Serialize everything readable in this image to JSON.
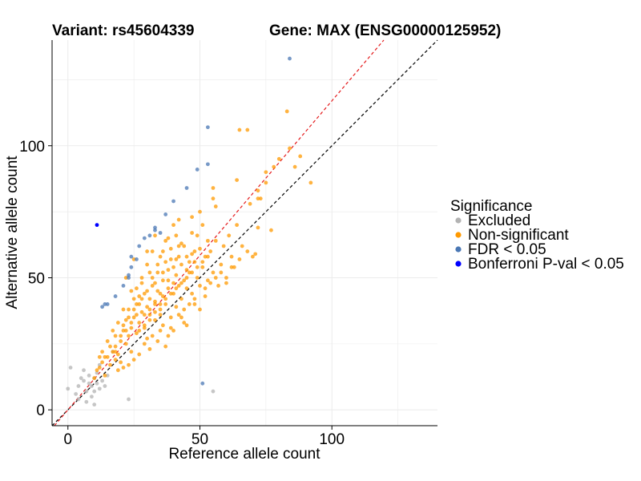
{
  "chart_data": {
    "type": "scatter",
    "title_left": "Variant: rs45604339",
    "title_right": "Gene: MAX (ENSG00000125952)",
    "xlabel": "Reference allele count",
    "ylabel": "Alternative allele count",
    "xlim": [
      -6,
      140
    ],
    "ylim": [
      -6,
      140
    ],
    "xticks": [
      0,
      50,
      100
    ],
    "yticks": [
      0,
      50,
      100
    ],
    "grid": true,
    "reference_lines": [
      {
        "name": "y = x",
        "slope": 1.0,
        "intercept": 0,
        "color": "#000000",
        "style": "dashed"
      },
      {
        "name": "fitted ratio",
        "slope": 1.17,
        "intercept": 0,
        "color": "#e41a1c",
        "style": "dashed"
      }
    ],
    "legend": {
      "title": "Significance",
      "position": "right",
      "items": [
        {
          "label": "Excluded",
          "color": "#b3b3b3"
        },
        {
          "label": "Non-significant",
          "color": "#ff9900"
        },
        {
          "label": "FDR < 0.05",
          "color": "#4a77b4"
        },
        {
          "label": "Bonferroni P-val < 0.05",
          "color": "#0000ff"
        }
      ]
    },
    "series": [
      {
        "name": "Excluded",
        "color": "#b3b3b3",
        "points": [
          [
            0,
            8
          ],
          [
            1,
            16
          ],
          [
            3,
            6
          ],
          [
            4,
            9
          ],
          [
            4,
            4
          ],
          [
            5,
            12
          ],
          [
            6,
            11
          ],
          [
            6,
            15
          ],
          [
            7,
            7
          ],
          [
            7,
            3
          ],
          [
            8,
            10
          ],
          [
            8,
            13
          ],
          [
            9,
            5
          ],
          [
            9,
            9
          ],
          [
            10,
            12
          ],
          [
            10,
            7
          ],
          [
            10,
            2
          ],
          [
            11,
            10
          ],
          [
            11,
            14
          ],
          [
            12,
            8
          ],
          [
            12,
            17
          ],
          [
            13,
            11
          ],
          [
            14,
            9
          ],
          [
            15,
            13
          ],
          [
            17,
            22
          ],
          [
            23,
            4
          ],
          [
            55,
            7
          ]
        ]
      },
      {
        "name": "Non-significant",
        "color": "#ff9900",
        "points": [
          [
            10,
            12
          ],
          [
            11,
            15
          ],
          [
            12,
            16
          ],
          [
            13,
            18
          ],
          [
            14,
            13
          ],
          [
            15,
            20
          ],
          [
            16,
            17
          ],
          [
            17,
            22
          ],
          [
            18,
            19
          ],
          [
            18,
            24
          ],
          [
            19,
            21
          ],
          [
            20,
            26
          ],
          [
            20,
            18
          ],
          [
            21,
            30
          ],
          [
            22,
            25
          ],
          [
            22,
            34
          ],
          [
            23,
            28
          ],
          [
            23,
            38
          ],
          [
            24,
            31
          ],
          [
            24,
            22
          ],
          [
            25,
            35
          ],
          [
            25,
            42
          ],
          [
            26,
            29
          ],
          [
            26,
            46
          ],
          [
            27,
            33
          ],
          [
            27,
            40
          ],
          [
            28,
            37
          ],
          [
            28,
            50
          ],
          [
            29,
            31
          ],
          [
            29,
            44
          ],
          [
            30,
            39
          ],
          [
            30,
            55
          ],
          [
            30,
            27
          ],
          [
            31,
            42
          ],
          [
            31,
            36
          ],
          [
            32,
            47
          ],
          [
            32,
            60
          ],
          [
            33,
            34
          ],
          [
            33,
            41
          ],
          [
            34,
            45
          ],
          [
            34,
            52
          ],
          [
            35,
            38
          ],
          [
            35,
            30
          ],
          [
            35,
            58
          ],
          [
            36,
            43
          ],
          [
            36,
            49
          ],
          [
            37,
            40
          ],
          [
            37,
            64
          ],
          [
            38,
            46
          ],
          [
            38,
            53
          ],
          [
            39,
            35
          ],
          [
            39,
            57
          ],
          [
            40,
            44
          ],
          [
            40,
            48
          ],
          [
            41,
            51
          ],
          [
            41,
            39
          ],
          [
            42,
            62
          ],
          [
            42,
            47
          ],
          [
            43,
            55
          ],
          [
            43,
            42
          ],
          [
            44,
            49
          ],
          [
            44,
            33
          ],
          [
            45,
            58
          ],
          [
            45,
            46
          ],
          [
            46,
            52
          ],
          [
            47,
            44
          ],
          [
            47,
            67
          ],
          [
            48,
            56
          ],
          [
            48,
            40
          ],
          [
            49,
            50
          ],
          [
            50,
            47
          ],
          [
            50,
            61
          ],
          [
            51,
            54
          ],
          [
            52,
            43
          ],
          [
            52,
            58
          ],
          [
            53,
            49
          ],
          [
            54,
            60
          ],
          [
            55,
            52
          ],
          [
            56,
            64
          ],
          [
            57,
            47
          ],
          [
            58,
            55
          ],
          [
            59,
            62
          ],
          [
            60,
            50
          ],
          [
            61,
            66
          ],
          [
            62,
            58
          ],
          [
            63,
            54
          ],
          [
            64,
            70
          ],
          [
            65,
            57
          ],
          [
            66,
            62
          ],
          [
            68,
            60
          ],
          [
            70,
            58
          ],
          [
            71,
            59
          ],
          [
            72,
            80
          ],
          [
            75,
            90
          ],
          [
            78,
            92
          ],
          [
            80,
            95
          ],
          [
            83,
            113
          ],
          [
            84,
            99
          ],
          [
            86,
            92
          ],
          [
            88,
            96
          ],
          [
            92,
            86
          ],
          [
            65,
            106
          ],
          [
            68,
            106
          ],
          [
            72,
            69
          ],
          [
            72,
            83
          ],
          [
            64,
            87
          ],
          [
            55,
            84
          ],
          [
            55,
            80
          ],
          [
            56,
            77
          ],
          [
            50,
            75
          ],
          [
            47,
            73
          ],
          [
            42,
            72
          ],
          [
            41,
            66
          ],
          [
            33,
            66
          ],
          [
            30,
            60
          ],
          [
            25,
            57
          ],
          [
            22,
            50
          ],
          [
            28,
            48
          ],
          [
            26,
            40
          ],
          [
            24,
            45
          ],
          [
            21,
            38
          ],
          [
            19,
            33
          ],
          [
            18,
            28
          ],
          [
            17,
            30
          ],
          [
            16,
            24
          ],
          [
            15,
            26
          ],
          [
            14,
            20
          ],
          [
            13,
            22
          ],
          [
            12,
            20
          ],
          [
            32,
            28
          ],
          [
            36,
            32
          ],
          [
            38,
            28
          ],
          [
            40,
            30
          ],
          [
            42,
            36
          ],
          [
            44,
            38
          ],
          [
            46,
            40
          ],
          [
            48,
            42
          ],
          [
            50,
            38
          ],
          [
            52,
            46
          ],
          [
            54,
            48
          ],
          [
            56,
            50
          ],
          [
            58,
            52
          ],
          [
            60,
            48
          ],
          [
            62,
            54
          ],
          [
            29,
            25
          ],
          [
            31,
            23
          ],
          [
            27,
            21
          ],
          [
            25,
            19
          ],
          [
            23,
            17
          ],
          [
            21,
            16
          ],
          [
            19,
            15
          ],
          [
            34,
            26
          ],
          [
            37,
            24
          ],
          [
            39,
            31
          ],
          [
            43,
            35
          ],
          [
            45,
            32
          ],
          [
            30,
            45
          ],
          [
            32,
            50
          ],
          [
            34,
            55
          ],
          [
            36,
            60
          ],
          [
            38,
            65
          ],
          [
            40,
            70
          ],
          [
            31,
            52
          ],
          [
            33,
            48
          ],
          [
            35,
            44
          ],
          [
            37,
            56
          ],
          [
            39,
            61
          ],
          [
            41,
            57
          ],
          [
            43,
            63
          ],
          [
            45,
            53
          ],
          [
            47,
            59
          ],
          [
            49,
            66
          ],
          [
            51,
            70
          ],
          [
            53,
            64
          ],
          [
            28,
            42
          ],
          [
            26,
            36
          ],
          [
            24,
            33
          ],
          [
            22,
            30
          ],
          [
            20,
            28
          ],
          [
            18,
            22
          ],
          [
            29,
            36
          ],
          [
            31,
            38
          ],
          [
            33,
            40
          ],
          [
            35,
            36
          ],
          [
            37,
            42
          ],
          [
            39,
            44
          ],
          [
            41,
            46
          ],
          [
            43,
            48
          ],
          [
            45,
            50
          ],
          [
            47,
            52
          ],
          [
            49,
            54
          ],
          [
            51,
            56
          ],
          [
            53,
            58
          ],
          [
            36,
            52
          ],
          [
            38,
            49
          ],
          [
            40,
            54
          ],
          [
            42,
            58
          ],
          [
            44,
            62
          ],
          [
            46,
            56
          ],
          [
            48,
            60
          ],
          [
            27,
            30
          ],
          [
            29,
            32
          ],
          [
            31,
            34
          ],
          [
            33,
            37
          ],
          [
            35,
            40
          ],
          [
            27,
            43
          ],
          [
            25,
            38
          ],
          [
            23,
            35
          ],
          [
            21,
            32
          ],
          [
            77,
            68
          ],
          [
            75,
            86
          ],
          [
            73,
            80
          ],
          [
            69,
            78
          ]
        ]
      },
      {
        "name": "FDR < 0.05",
        "color": "#4a77b4",
        "points": [
          [
            13,
            39
          ],
          [
            14,
            40
          ],
          [
            15,
            40
          ],
          [
            18,
            43
          ],
          [
            21,
            47
          ],
          [
            23,
            51
          ],
          [
            23,
            50
          ],
          [
            24,
            54
          ],
          [
            24,
            58
          ],
          [
            26,
            57
          ],
          [
            27,
            62
          ],
          [
            29,
            65
          ],
          [
            31,
            66
          ],
          [
            33,
            68
          ],
          [
            33,
            69
          ],
          [
            35,
            67
          ],
          [
            37,
            74
          ],
          [
            40,
            79
          ],
          [
            45,
            84
          ],
          [
            49,
            91
          ],
          [
            53,
            93
          ],
          [
            53,
            107
          ],
          [
            84,
            133
          ],
          [
            51,
            10
          ]
        ]
      },
      {
        "name": "Bonferroni P-val < 0.05",
        "color": "#0000ff",
        "points": [
          [
            11,
            70
          ]
        ]
      }
    ]
  }
}
